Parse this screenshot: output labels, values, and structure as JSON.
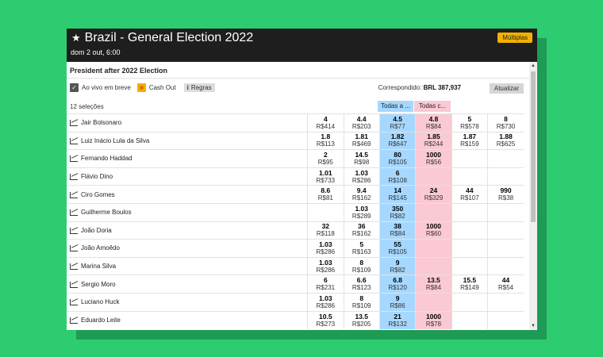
{
  "header": {
    "title": "Brazil - General Election 2022",
    "subtitle": "dom 2 out, 6:00",
    "multiples_label": "Múltiplas"
  },
  "market": {
    "name": "President after 2022 Election",
    "in_play_label": "Ao vivo em breve",
    "cash_out_label": "Cash Out",
    "rules_label": "Regras",
    "matched_label": "Correspondido:",
    "matched_value": "BRL 387,937",
    "update_label": "Atualizar",
    "selections_count": "12 seleções",
    "back_all_label": "Todas a ...",
    "lay_all_label": "Todas c..."
  },
  "runners": [
    {
      "name": "Jair Bolsonaro",
      "cells": [
        [
          "4",
          "R$414"
        ],
        [
          "4.4",
          "R$203"
        ],
        [
          "4.5",
          "R$77"
        ],
        [
          "4.8",
          "R$84"
        ],
        [
          "5",
          "R$578"
        ],
        [
          "8",
          "R$730"
        ]
      ]
    },
    {
      "name": "Luiz Inácio Lula da Silva",
      "cells": [
        [
          "1.8",
          "R$113"
        ],
        [
          "1.81",
          "R$469"
        ],
        [
          "1.82",
          "R$647"
        ],
        [
          "1.85",
          "R$244"
        ],
        [
          "1.87",
          "R$159"
        ],
        [
          "1.88",
          "R$625"
        ]
      ]
    },
    {
      "name": "Fernando Haddad",
      "cells": [
        [
          "2",
          "R$95"
        ],
        [
          "14.5",
          "R$98"
        ],
        [
          "80",
          "R$105"
        ],
        [
          "1000",
          "R$56"
        ],
        [
          "",
          ""
        ],
        [
          "",
          ""
        ]
      ]
    },
    {
      "name": "Flávio Dino",
      "cells": [
        [
          "1.01",
          "R$733"
        ],
        [
          "1.03",
          "R$286"
        ],
        [
          "6",
          "R$108"
        ],
        [
          "",
          ""
        ],
        [
          "",
          ""
        ],
        [
          "",
          ""
        ]
      ]
    },
    {
      "name": "Ciro Gomes",
      "cells": [
        [
          "8.6",
          "R$81"
        ],
        [
          "9.4",
          "R$162"
        ],
        [
          "14",
          "R$145"
        ],
        [
          "24",
          "R$329"
        ],
        [
          "44",
          "R$107"
        ],
        [
          "990",
          "R$38"
        ]
      ]
    },
    {
      "name": "Guilherme Boulos",
      "cells": [
        [
          "",
          ""
        ],
        [
          "1.03",
          "R$289"
        ],
        [
          "350",
          "R$82"
        ],
        [
          "",
          ""
        ],
        [
          "",
          ""
        ],
        [
          "",
          ""
        ]
      ]
    },
    {
      "name": "João Doria",
      "cells": [
        [
          "32",
          "R$118"
        ],
        [
          "36",
          "R$162"
        ],
        [
          "38",
          "R$84"
        ],
        [
          "1000",
          "R$60"
        ],
        [
          "",
          ""
        ],
        [
          "",
          ""
        ]
      ]
    },
    {
      "name": "João Amoêdo",
      "cells": [
        [
          "1.03",
          "R$286"
        ],
        [
          "5",
          "R$163"
        ],
        [
          "55",
          "R$105"
        ],
        [
          "",
          ""
        ],
        [
          "",
          ""
        ],
        [
          "",
          ""
        ]
      ]
    },
    {
      "name": "Marina Silva",
      "cells": [
        [
          "1.03",
          "R$286"
        ],
        [
          "8",
          "R$109"
        ],
        [
          "9",
          "R$82"
        ],
        [
          "",
          ""
        ],
        [
          "",
          ""
        ],
        [
          "",
          ""
        ]
      ]
    },
    {
      "name": "Sergio Moro",
      "cells": [
        [
          "6",
          "R$231"
        ],
        [
          "6.6",
          "R$123"
        ],
        [
          "6.8",
          "R$120"
        ],
        [
          "13.5",
          "R$84"
        ],
        [
          "15.5",
          "R$149"
        ],
        [
          "44",
          "R$54"
        ]
      ]
    },
    {
      "name": "Luciano Huck",
      "cells": [
        [
          "1.03",
          "R$286"
        ],
        [
          "8",
          "R$109"
        ],
        [
          "9",
          "R$86"
        ],
        [
          "",
          ""
        ],
        [
          "",
          ""
        ],
        [
          "",
          ""
        ]
      ]
    },
    {
      "name": "Eduardo Leite",
      "cells": [
        [
          "10.5",
          "R$273"
        ],
        [
          "13.5",
          "R$205"
        ],
        [
          "21",
          "R$132"
        ],
        [
          "1000",
          "R$78"
        ],
        [
          "",
          ""
        ],
        [
          "",
          ""
        ]
      ]
    }
  ]
}
